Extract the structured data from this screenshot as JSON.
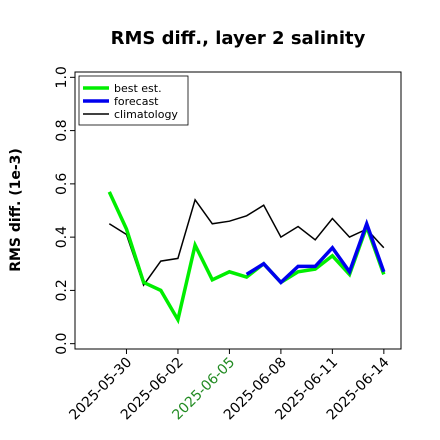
{
  "chart_data": {
    "type": "line",
    "title": "RMS diff., layer 2 salinity",
    "ylabel": "RMS diff. (1e-3)",
    "xlabel": "",
    "ylim": [
      -0.02,
      1.02
    ],
    "xlim": [
      "2025-05-27",
      "2025-06-15"
    ],
    "yticks": [
      "0.0",
      "0.2",
      "0.4",
      "0.6",
      "0.8",
      "1.0"
    ],
    "xticks": [
      {
        "label": "2025-05-30",
        "color": "#000000"
      },
      {
        "label": "2025-06-02",
        "color": "#000000"
      },
      {
        "label": "2025-06-05",
        "color": "#228b22"
      },
      {
        "label": "2025-06-08",
        "color": "#000000"
      },
      {
        "label": "2025-06-11",
        "color": "#000000"
      },
      {
        "label": "2025-06-14",
        "color": "#000000"
      }
    ],
    "legend_position": "top-left",
    "grid": false,
    "series": [
      {
        "name": "best est.",
        "color": "#00ee00",
        "x": [
          "2025-05-29",
          "2025-05-30",
          "2025-05-31",
          "2025-06-01",
          "2025-06-02",
          "2025-06-03",
          "2025-06-04",
          "2025-06-05",
          "2025-06-06",
          "2025-06-07",
          "2025-06-08",
          "2025-06-09",
          "2025-06-10",
          "2025-06-11",
          "2025-06-12",
          "2025-06-13",
          "2025-06-14"
        ],
        "values": [
          0.57,
          0.43,
          0.23,
          0.2,
          0.09,
          0.37,
          0.24,
          0.27,
          0.25,
          0.3,
          0.23,
          0.27,
          0.28,
          0.33,
          0.26,
          0.44,
          0.26
        ]
      },
      {
        "name": "forecast",
        "color": "#0000ee",
        "x": [
          "2025-06-06",
          "2025-06-07",
          "2025-06-08",
          "2025-06-09",
          "2025-06-10",
          "2025-06-11",
          "2025-06-12",
          "2025-06-13",
          "2025-06-14"
        ],
        "values": [
          0.26,
          0.3,
          0.23,
          0.29,
          0.29,
          0.36,
          0.27,
          0.45,
          0.27
        ]
      },
      {
        "name": "climatology",
        "color": "#000000",
        "x": [
          "2025-05-29",
          "2025-05-30",
          "2025-05-31",
          "2025-06-01",
          "2025-06-02",
          "2025-06-03",
          "2025-06-04",
          "2025-06-05",
          "2025-06-06",
          "2025-06-07",
          "2025-06-08",
          "2025-06-09",
          "2025-06-10",
          "2025-06-11",
          "2025-06-12",
          "2025-06-13",
          "2025-06-14"
        ],
        "values": [
          0.45,
          0.41,
          0.22,
          0.31,
          0.32,
          0.54,
          0.45,
          0.46,
          0.48,
          0.52,
          0.4,
          0.44,
          0.39,
          0.47,
          0.4,
          0.43,
          0.36
        ]
      }
    ]
  }
}
